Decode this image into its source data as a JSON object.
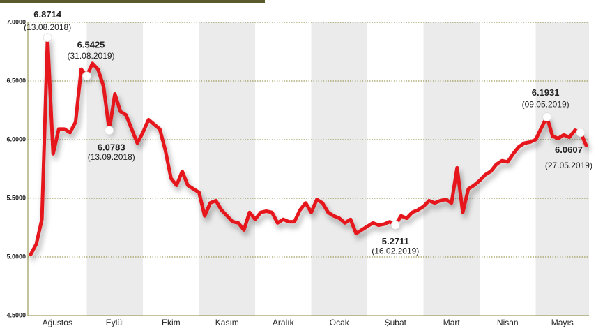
{
  "chart_data": {
    "type": "line",
    "categories": [
      null,
      null,
      null,
      null,
      null,
      "Ağustos",
      null,
      null,
      null,
      null,
      null,
      null,
      null,
      null,
      null,
      "Eylül",
      null,
      null,
      null,
      null,
      null,
      null,
      null,
      null,
      null,
      "Ekim",
      null,
      null,
      null,
      null,
      null,
      null,
      null,
      null,
      null,
      "Kasım",
      null,
      null,
      null,
      null,
      null,
      null,
      null,
      null,
      null,
      "Aralık",
      null,
      null,
      null,
      null,
      null,
      null,
      null,
      null,
      null,
      "Ocak",
      null,
      null,
      null,
      null,
      null,
      null,
      null,
      null,
      null,
      "Şubat",
      null,
      null,
      null,
      null,
      null,
      null,
      null,
      null,
      null,
      "Mart",
      null,
      null,
      null,
      null,
      null,
      null,
      null,
      null,
      null,
      "Nisan",
      null,
      null,
      null,
      null,
      null,
      null,
      null,
      null,
      null,
      "Mayıs",
      null,
      null,
      null,
      null
    ],
    "series": [
      {
        "color": "#e5121b",
        "values": [
          5.02,
          5.11,
          5.32,
          6.8714,
          5.88,
          6.09,
          6.09,
          6.06,
          6.15,
          6.6,
          6.5425,
          6.65,
          6.6,
          6.45,
          6.0783,
          6.39,
          6.24,
          6.21,
          6.09,
          5.97,
          6.06,
          6.17,
          6.13,
          6.09,
          5.91,
          5.67,
          5.61,
          5.73,
          5.61,
          5.58,
          5.55,
          5.35,
          5.46,
          5.48,
          5.4,
          5.35,
          5.3,
          5.29,
          5.23,
          5.38,
          5.32,
          5.38,
          5.39,
          5.38,
          5.29,
          5.32,
          5.3,
          5.3,
          5.4,
          5.46,
          5.38,
          5.49,
          5.46,
          5.38,
          5.35,
          5.33,
          5.29,
          5.32,
          5.2,
          5.23,
          5.26,
          5.29,
          5.27,
          5.28,
          5.3,
          5.2711,
          5.35,
          5.33,
          5.38,
          5.4,
          5.43,
          5.48,
          5.46,
          5.48,
          5.49,
          5.46,
          5.76,
          5.38,
          5.58,
          5.61,
          5.65,
          5.7,
          5.73,
          5.79,
          5.82,
          5.81,
          5.88,
          5.94,
          5.97,
          5.98,
          6.0,
          6.1,
          6.1931,
          6.03,
          6.01,
          6.04,
          6.02,
          6.08,
          6.0607,
          5.95
        ]
      }
    ],
    "ylim": [
      4.5,
      7
    ],
    "yticks": [
      {
        "value": 4.5,
        "label": "4.5000"
      },
      {
        "value": 5,
        "label": "5.0000"
      },
      {
        "value": 5.5,
        "label": "5.5000"
      },
      {
        "value": 6,
        "label": "6.0000"
      },
      {
        "value": 6.5,
        "label": "6.5000"
      },
      {
        "value": 7,
        "label": "7.0000"
      }
    ],
    "grid": true,
    "annotations": [
      {
        "value": 6.8714,
        "date": "(13.08.2018)"
      },
      {
        "value": 6.5425,
        "date": "(31.08.2019)"
      },
      {
        "value": 6.0783,
        "date": "(13.09.2018)"
      },
      {
        "value": 6.1931,
        "date": "(09.05.2019)"
      },
      {
        "value": 6.0607,
        "date": "(27.05.2019)"
      },
      {
        "value": 5.2711,
        "date": "(16.02.2019)"
      }
    ]
  }
}
